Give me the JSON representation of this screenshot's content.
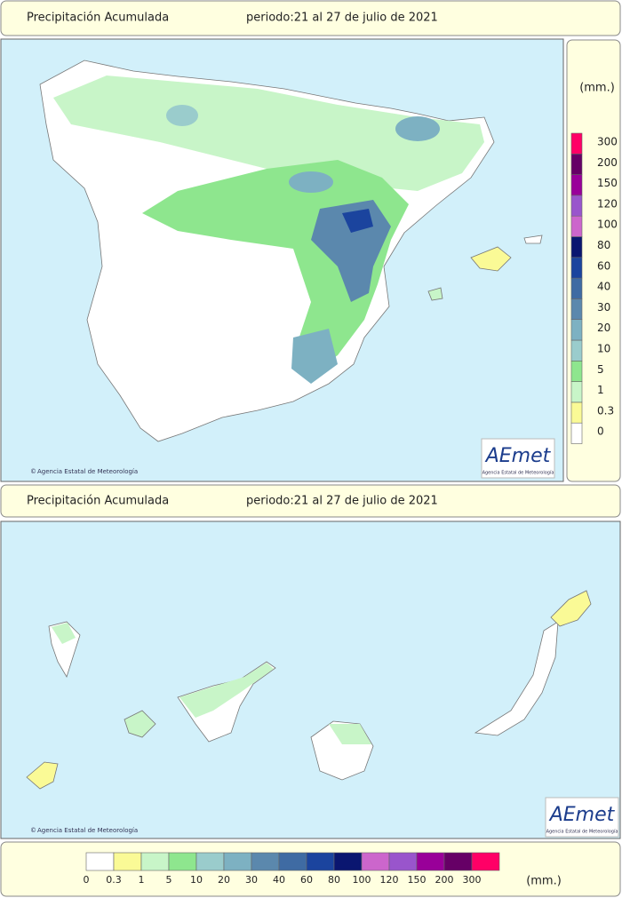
{
  "header": {
    "title": "Precipitación Acumulada",
    "period": "periodo:21 al 27 de julio de 2021"
  },
  "credit": "Agencia Estatal de Meteorología",
  "logo": {
    "name": "AEmet",
    "subtitle": "Agencia Estatal de Meteorología"
  },
  "legend": {
    "unit": "(mm.)",
    "items": [
      {
        "label": "0",
        "color": "#ffffff"
      },
      {
        "label": "0.3",
        "color": "#fafa96"
      },
      {
        "label": "1",
        "color": "#c8f5c8"
      },
      {
        "label": "5",
        "color": "#8ee68e"
      },
      {
        "label": "10",
        "color": "#9acccc"
      },
      {
        "label": "20",
        "color": "#7db1c2"
      },
      {
        "label": "30",
        "color": "#5b88ad"
      },
      {
        "label": "40",
        "color": "#3f6ba3"
      },
      {
        "label": "60",
        "color": "#1b449e"
      },
      {
        "label": "80",
        "color": "#0a1670"
      },
      {
        "label": "100",
        "color": "#cc66cc"
      },
      {
        "label": "120",
        "color": "#9955cc"
      },
      {
        "label": "150",
        "color": "#990099"
      },
      {
        "label": "200",
        "color": "#660066"
      },
      {
        "label": "300",
        "color": "#ff0066"
      }
    ]
  }
}
